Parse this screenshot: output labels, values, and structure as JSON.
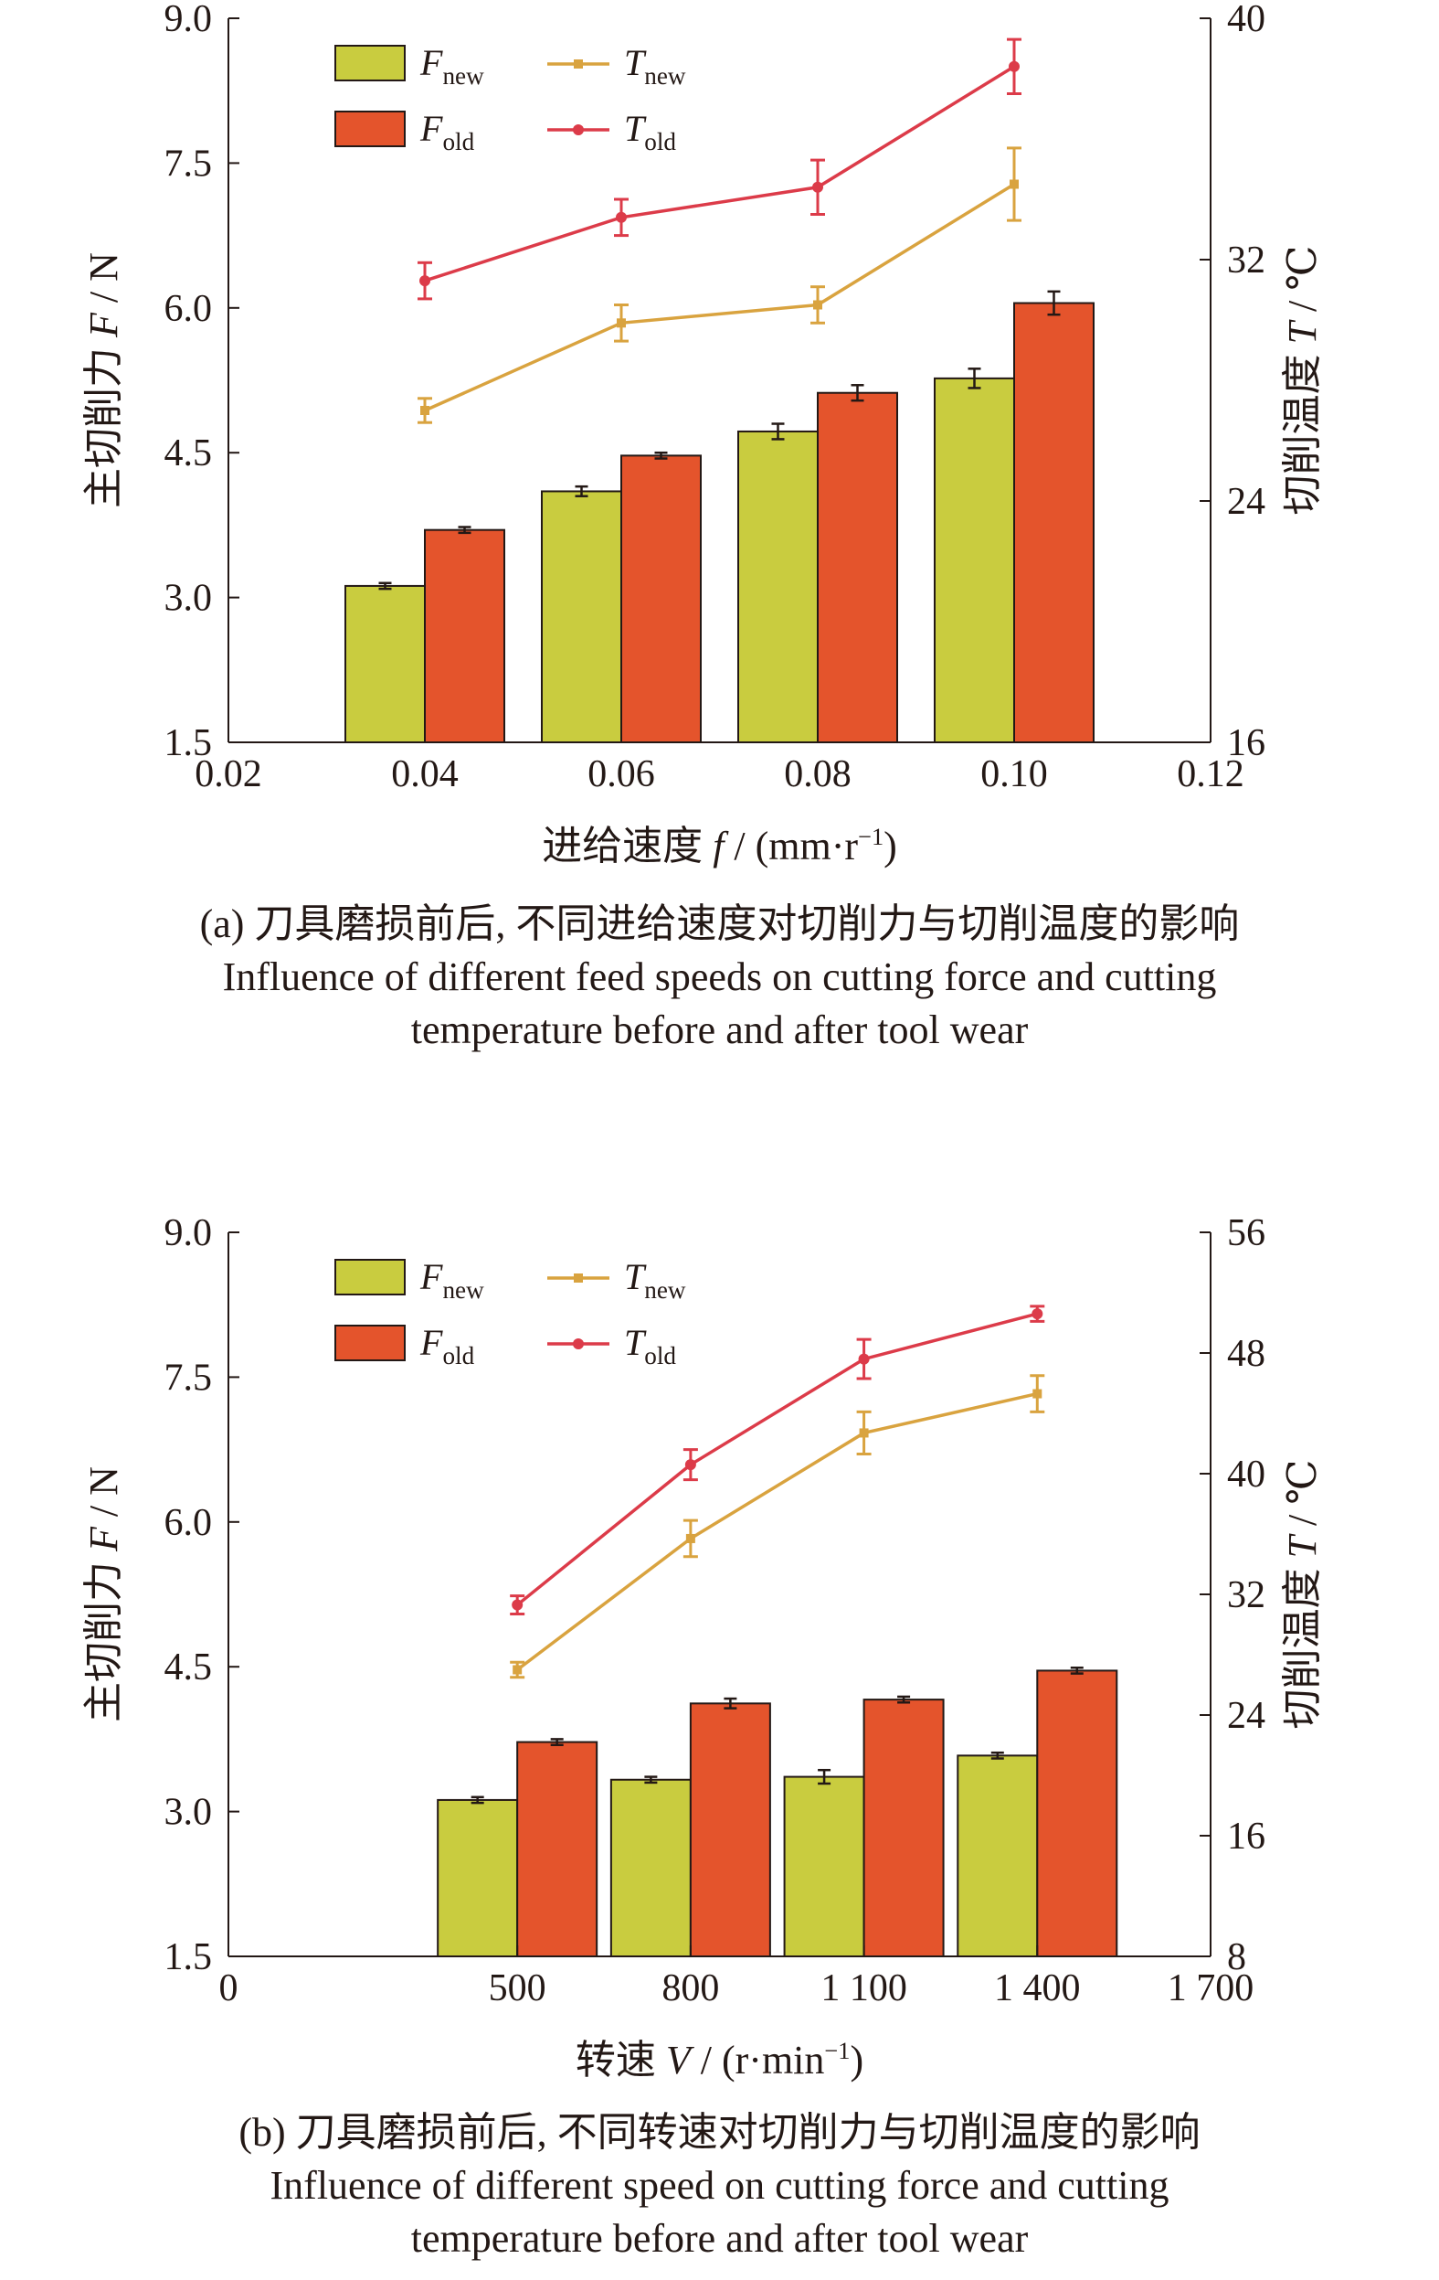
{
  "colors": {
    "F_new": "#c9cc3f",
    "F_old": "#e4542c",
    "T_new": "#d9a33f",
    "T_old": "#dc3b49",
    "axis": "#231815"
  },
  "chart_data": [
    {
      "type": "bar",
      "panel": "a",
      "xlabel": "进给速度 f / (mm·r⁻¹)",
      "ylabel_left": "主切削力 F / N",
      "ylabel_right": "切削温度 T / ℃",
      "x_ticks": [
        "0.02",
        "0.04",
        "0.06",
        "0.08",
        "0.10",
        "0.12"
      ],
      "y_left_ticks": [
        "1.5",
        "3.0",
        "4.5",
        "6.0",
        "7.5",
        "9.0"
      ],
      "y_right_ticks": [
        "16",
        "24",
        "32",
        "40"
      ],
      "x_range": [
        0.02,
        0.12
      ],
      "ylim_left": [
        1.5,
        9.0
      ],
      "ylim_right": [
        16,
        40
      ],
      "x": [
        0.04,
        0.06,
        0.08,
        0.1
      ],
      "legend": {
        "position": "top-left",
        "entries": [
          {
            "base": "F",
            "sub": "new"
          },
          {
            "base": "T",
            "sub": "new"
          },
          {
            "base": "F",
            "sub": "old"
          },
          {
            "base": "T",
            "sub": "old"
          }
        ]
      },
      "series": [
        {
          "name": "F_new",
          "kind": "bar",
          "axis": "left",
          "values": [
            3.12,
            4.1,
            4.72,
            5.27
          ],
          "errors": [
            0.03,
            0.05,
            0.08,
            0.1
          ]
        },
        {
          "name": "F_old",
          "kind": "bar",
          "axis": "left",
          "values": [
            3.7,
            4.47,
            5.12,
            6.05
          ],
          "errors": [
            0.03,
            0.03,
            0.08,
            0.12
          ]
        },
        {
          "name": "T_new",
          "kind": "line",
          "axis": "right",
          "values": [
            27.0,
            29.9,
            30.5,
            34.5
          ],
          "errors": [
            0.4,
            0.6,
            0.6,
            1.2
          ]
        },
        {
          "name": "T_old",
          "kind": "line",
          "axis": "right",
          "values": [
            31.3,
            33.4,
            34.4,
            38.4
          ],
          "errors": [
            0.6,
            0.6,
            0.9,
            0.9
          ]
        }
      ],
      "caption_cn": "(a) 刀具磨损前后, 不同进给速度对切削力与切削温度的影响",
      "caption_en_1": "Influence of different feed speeds on cutting force and cutting",
      "caption_en_2": "temperature before and after tool wear"
    },
    {
      "type": "bar",
      "panel": "b",
      "xlabel": "转速 V / (r·min⁻¹)",
      "ylabel_left": "主切削力 F / N",
      "ylabel_right": "切削温度 T / ℃",
      "x_ticks": [
        "0",
        "500",
        "800",
        "1 100",
        "1 400",
        "1 700"
      ],
      "y_left_ticks": [
        "1.5",
        "3.0",
        "4.5",
        "6.0",
        "7.5",
        "9.0"
      ],
      "y_right_ticks": [
        "8",
        "16",
        "24",
        "32",
        "40",
        "48",
        "56"
      ],
      "ylim_left": [
        1.5,
        9.0
      ],
      "ylim_right": [
        8,
        56
      ],
      "x": [
        500,
        800,
        1100,
        1400
      ],
      "legend": {
        "position": "top-left",
        "entries": [
          {
            "base": "F",
            "sub": "new"
          },
          {
            "base": "T",
            "sub": "new"
          },
          {
            "base": "F",
            "sub": "old"
          },
          {
            "base": "T",
            "sub": "old"
          }
        ]
      },
      "series": [
        {
          "name": "F_new",
          "kind": "bar",
          "axis": "left",
          "values": [
            3.12,
            3.33,
            3.36,
            3.58
          ],
          "errors": [
            0.03,
            0.03,
            0.07,
            0.03
          ]
        },
        {
          "name": "F_old",
          "kind": "bar",
          "axis": "left",
          "values": [
            3.72,
            4.12,
            4.16,
            4.46
          ],
          "errors": [
            0.03,
            0.05,
            0.03,
            0.03
          ]
        },
        {
          "name": "T_new",
          "kind": "line",
          "axis": "right",
          "values": [
            27.0,
            35.7,
            42.7,
            45.3
          ],
          "errors": [
            0.5,
            1.2,
            1.4,
            1.2
          ]
        },
        {
          "name": "T_old",
          "kind": "line",
          "axis": "right",
          "values": [
            31.3,
            40.6,
            47.6,
            50.6
          ],
          "errors": [
            0.6,
            1.0,
            1.3,
            0.5
          ]
        }
      ],
      "caption_cn": "(b) 刀具磨损前后, 不同转速对切削力与切削温度的影响",
      "caption_en_1": "Influence of different speed on cutting force and cutting",
      "caption_en_2": "temperature before and after tool wear"
    }
  ]
}
